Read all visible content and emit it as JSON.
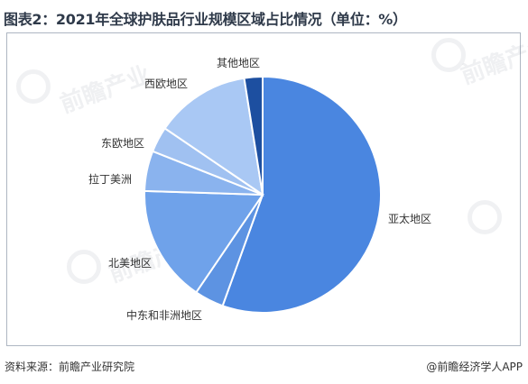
{
  "title": "图表2：2021年全球护肤品行业规模区域占比情况（单位：%）",
  "footer": {
    "source": "资料来源：前瞻产业研究院",
    "credit": "@前瞻经济学人APP"
  },
  "watermark": {
    "text": "前瞻产业"
  },
  "chart_data": {
    "type": "pie",
    "title": "图表2：2021年全球护肤品行业规模区域占比情况（单位：%）",
    "start_angle_deg": 0,
    "direction": "clockwise",
    "slices": [
      {
        "label": "亚太地区",
        "value": 55.5,
        "color": "#4a86e0"
      },
      {
        "label": "中东和非洲地区",
        "value": 4.0,
        "color": "#5d93e2"
      },
      {
        "label": "北美地区",
        "value": 16.0,
        "color": "#6fa2ea"
      },
      {
        "label": "拉丁美洲",
        "value": 5.5,
        "color": "#8ab3ee"
      },
      {
        "label": "东欧地区",
        "value": 3.5,
        "color": "#a0c1f1"
      },
      {
        "label": "西欧地区",
        "value": 13.0,
        "color": "#a9c8f4"
      },
      {
        "label": "其他地区",
        "value": 2.5,
        "color": "#1d4fa0"
      }
    ]
  }
}
